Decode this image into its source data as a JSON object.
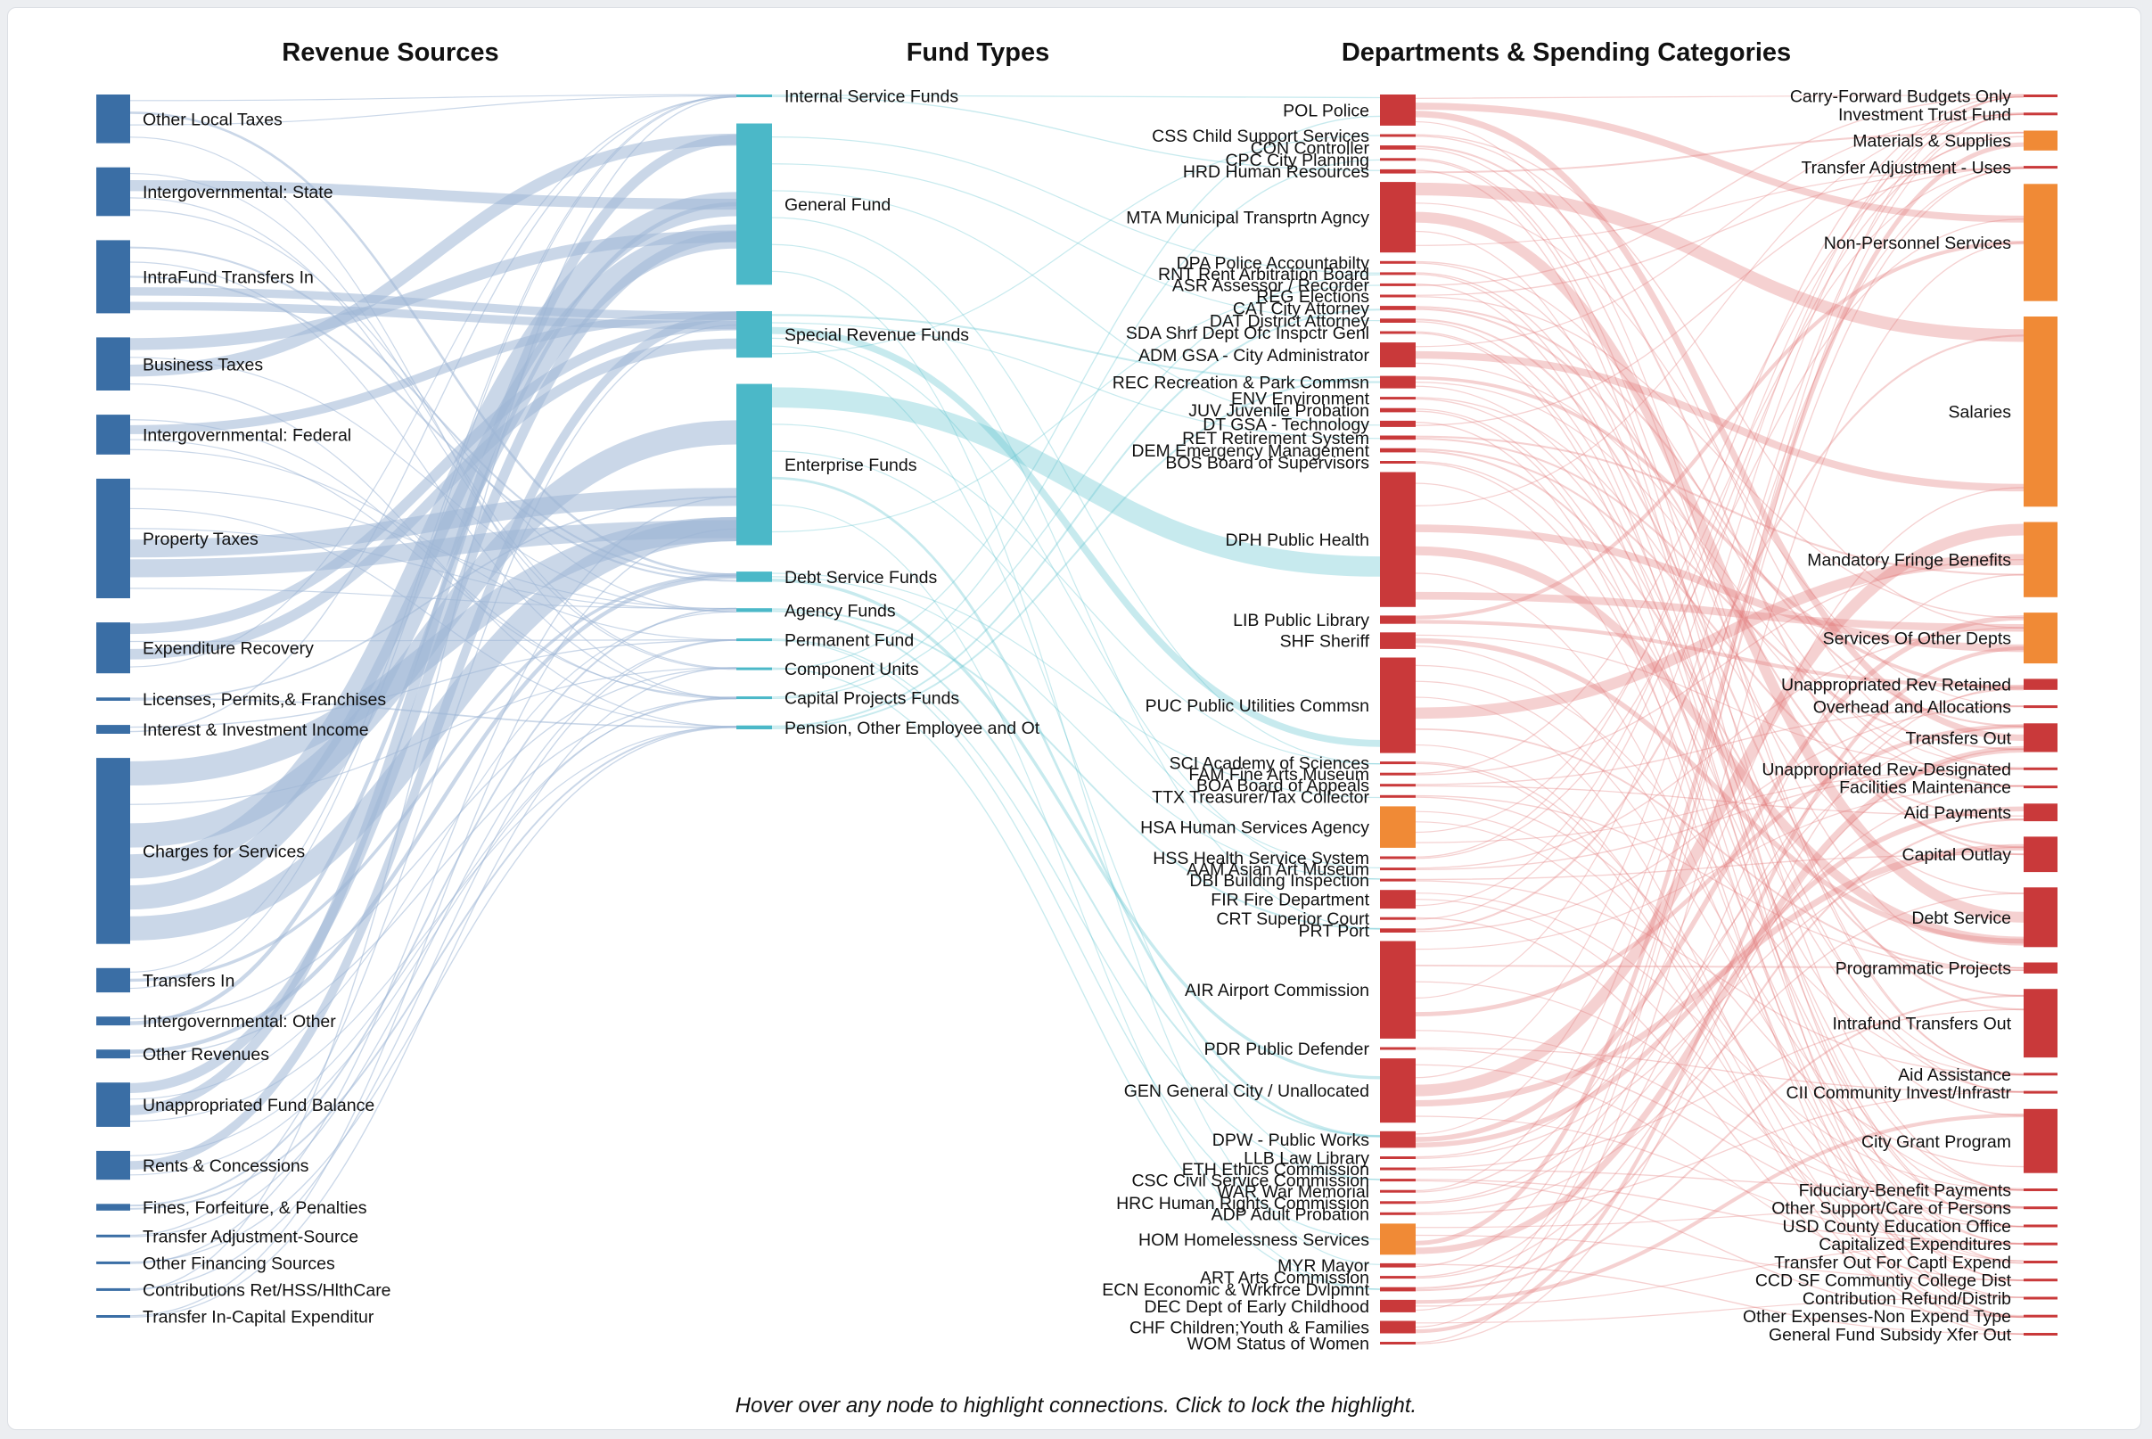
{
  "hint": "Hover over any node to highlight connections. Click to lock the highlight.",
  "colors": {
    "revenue": "#3a6ea5",
    "fund": "#4bb8c8",
    "dept_large": "#c9393a",
    "dept_highlight": "#f08a36",
    "category": "#f08a36",
    "category_alt": "#c9393a",
    "link_revenue": "#9fb6d6",
    "link_fund": "#5fc2cd",
    "link_dept": "#e27c7c"
  },
  "chart_data": {
    "type": "sankey",
    "titles": [
      "Revenue Sources",
      "Fund Types",
      "Departments & Spending Categories"
    ],
    "columns": [
      {
        "name": "Revenue Sources",
        "nodes": [
          {
            "label": "Other Local Taxes",
            "w": 2.2
          },
          {
            "label": "Intergovernmental: State",
            "w": 2.2
          },
          {
            "label": "IntraFund Transfers In",
            "w": 3.3
          },
          {
            "label": "Business Taxes",
            "w": 2.4
          },
          {
            "label": "Intergovernmental: Federal",
            "w": 1.8
          },
          {
            "label": "Property Taxes",
            "w": 5.4
          },
          {
            "label": "Expenditure Recovery",
            "w": 2.3
          },
          {
            "label": "Licenses, Permits,& Franchises",
            "w": 0.15
          },
          {
            "label": "Interest & Investment Income",
            "w": 0.4
          },
          {
            "label": "Charges for Services",
            "w": 8.4
          },
          {
            "label": "Transfers In",
            "w": 1.1
          },
          {
            "label": "Intergovernmental: Other",
            "w": 0.4
          },
          {
            "label": "Other Revenues",
            "w": 0.4
          },
          {
            "label": "Unappropriated Fund Balance",
            "w": 2.0
          },
          {
            "label": "Rents & Concessions",
            "w": 1.3
          },
          {
            "label": "Fines, Forfeiture, & Penalties",
            "w": 0.3
          },
          {
            "label": "Transfer Adjustment-Source",
            "w": 0.05
          },
          {
            "label": "Other Financing Sources",
            "w": 0.05
          },
          {
            "label": "Contributions Ret/HSS/HlthCare",
            "w": 0.05
          },
          {
            "label": "Transfer In-Capital Expenditur",
            "w": 0.05
          }
        ]
      },
      {
        "name": "Fund Types",
        "nodes": [
          {
            "label": "Internal Service Funds",
            "w": 0.1
          },
          {
            "label": "General Fund",
            "w": 12.5
          },
          {
            "label": "Special Revenue Funds",
            "w": 3.6
          },
          {
            "label": "Enterprise Funds",
            "w": 12.5
          },
          {
            "label": "Debt Service Funds",
            "w": 0.8
          },
          {
            "label": "Agency Funds",
            "w": 0.3
          },
          {
            "label": "Permanent Fund",
            "w": 0.1
          },
          {
            "label": "Component Units",
            "w": 0.1
          },
          {
            "label": "Capital Projects Funds",
            "w": 0.2
          },
          {
            "label": "Pension, Other Employee and Ot",
            "w": 0.3
          }
        ]
      },
      {
        "name": "Departments",
        "nodes": [
          {
            "label": "POL Police",
            "w": 1.5
          },
          {
            "label": "CSS Child Support Services",
            "w": 0.1
          },
          {
            "label": "CON Controller",
            "w": 0.2
          },
          {
            "label": "CPC City Planning",
            "w": 0.1
          },
          {
            "label": "HRD Human Resources",
            "w": 0.2
          },
          {
            "label": "MTA Municipal Transprtn Agncy",
            "w": 3.4
          },
          {
            "label": "DPA Police Accountabilty",
            "w": 0.05
          },
          {
            "label": "RNT Rent Arbitration Board",
            "w": 0.05
          },
          {
            "label": "ASR Assessor / Recorder",
            "w": 0.1
          },
          {
            "label": "REG Elections",
            "w": 0.1
          },
          {
            "label": "CAT City Attorney",
            "w": 0.2
          },
          {
            "label": "DAT District Attorney",
            "w": 0.2
          },
          {
            "label": "SDA Shrf Dept Ofc Inspctr Genl",
            "w": 0.05
          },
          {
            "label": "ADM GSA - City Administrator",
            "w": 1.2
          },
          {
            "label": "REC Recreation & Park Commsn",
            "w": 0.6
          },
          {
            "label": "ENV Environment",
            "w": 0.1
          },
          {
            "label": "JUV Juvenile Probation",
            "w": 0.2
          },
          {
            "label": "DT GSA - Technology",
            "w": 0.3
          },
          {
            "label": "RET Retirement System",
            "w": 0.2
          },
          {
            "label": "DEM Emergency Management",
            "w": 0.2
          },
          {
            "label": "BOS Board of Supervisors",
            "w": 0.1
          },
          {
            "label": "DPH Public Health",
            "w": 6.5
          },
          {
            "label": "LIB Public Library",
            "w": 0.4
          },
          {
            "label": "SHF Sheriff",
            "w": 0.8
          },
          {
            "label": "PUC Public Utilities Commsn",
            "w": 4.6
          },
          {
            "label": "SCI Academy of Sciences",
            "w": 0.05
          },
          {
            "label": "FAM Fine Arts Museum",
            "w": 0.05
          },
          {
            "label": "BOA Board of Appeals",
            "w": 0.05
          },
          {
            "label": "TTX Treasurer/Tax Collector",
            "w": 0.1
          },
          {
            "label": "HSA Human Services Agency",
            "w": 2.0
          },
          {
            "label": "HSS Health Service System",
            "w": 0.1
          },
          {
            "label": "AAM Asian Art Museum",
            "w": 0.05
          },
          {
            "label": "DBI Building Inspection",
            "w": 0.1
          },
          {
            "label": "FIR Fire Department",
            "w": 0.9
          },
          {
            "label": "CRT Superior Court",
            "w": 0.05
          },
          {
            "label": "PRT Port",
            "w": 0.2
          },
          {
            "label": "AIR Airport Commission",
            "w": 4.7
          },
          {
            "label": "PDR Public Defender",
            "w": 0.1
          },
          {
            "label": "GEN General City / Unallocated",
            "w": 3.1
          },
          {
            "label": "DPW - Public Works",
            "w": 0.8
          },
          {
            "label": "LLB Law Library",
            "w": 0.05
          },
          {
            "label": "ETH Ethics Commission",
            "w": 0.05
          },
          {
            "label": "CSC Civil Service Commission",
            "w": 0.05
          },
          {
            "label": "WAR War Memorial",
            "w": 0.05
          },
          {
            "label": "HRC Human Rights Commission",
            "w": 0.05
          },
          {
            "label": "ADP Adult Probation",
            "w": 0.1
          },
          {
            "label": "HOM Homelessness Services",
            "w": 1.5
          },
          {
            "label": "MYR Mayor",
            "w": 0.2
          },
          {
            "label": "ART Arts Commission",
            "w": 0.05
          },
          {
            "label": "ECN Economic & Wrkfrce Dvlpmnt",
            "w": 0.2
          },
          {
            "label": "DEC Dept of Early Childhood",
            "w": 0.6
          },
          {
            "label": "CHF Children;Youth & Families",
            "w": 0.6
          },
          {
            "label": "WOM Status of Women",
            "w": 0.05
          }
        ]
      },
      {
        "name": "Spending Categories",
        "nodes": [
          {
            "label": "Carry-Forward Budgets Only",
            "w": 0.05
          },
          {
            "label": "Investment Trust Fund",
            "w": 0.05
          },
          {
            "label": "Materials & Supplies",
            "w": 0.9
          },
          {
            "label": "Transfer Adjustment - Uses",
            "w": 0.05
          },
          {
            "label": "Non-Personnel Services",
            "w": 5.3
          },
          {
            "label": "Salaries",
            "w": 8.6
          },
          {
            "label": "Mandatory Fringe Benefits",
            "w": 3.4
          },
          {
            "label": "Services Of Other Depts",
            "w": 2.3
          },
          {
            "label": "Unappropriated Rev Retained",
            "w": 0.5
          },
          {
            "label": "Overhead and Allocations",
            "w": 0.1
          },
          {
            "label": "Transfers Out",
            "w": 1.3
          },
          {
            "label": "Unappropriated Rev-Designated",
            "w": 0.05
          },
          {
            "label": "Facilities Maintenance",
            "w": 0.05
          },
          {
            "label": "Aid Payments",
            "w": 0.8
          },
          {
            "label": "Capital Outlay",
            "w": 1.6
          },
          {
            "label": "Debt Service",
            "w": 2.7
          },
          {
            "label": "Programmatic Projects",
            "w": 0.5
          },
          {
            "label": "Intrafund Transfers Out",
            "w": 3.1
          },
          {
            "label": "Aid Assistance",
            "w": 0.05
          },
          {
            "label": "CII Community Invest/Infrastr",
            "w": 0.05
          },
          {
            "label": "City Grant Program",
            "w": 2.9
          },
          {
            "label": "Fiduciary-Benefit Payments",
            "w": 0.05
          },
          {
            "label": "Other Support/Care of Persons",
            "w": 0.05
          },
          {
            "label": "USD County Education Office",
            "w": 0.05
          },
          {
            "label": "Capitalized Expenditures",
            "w": 0.05
          },
          {
            "label": "Transfer Out For Captl Expend",
            "w": 0.05
          },
          {
            "label": "CCD SF Communtiy College Dist",
            "w": 0.05
          },
          {
            "label": "Contribution Refund/Distrib",
            "w": 0.05
          },
          {
            "label": "Other Expenses-Non Expend Type",
            "w": 0.05
          },
          {
            "label": "General Fund Subsidy Xfer Out",
            "w": 0.05
          }
        ]
      }
    ],
    "highlighted_departments": [
      "HSA Human Services Agency",
      "HOM Homelessness Services"
    ],
    "highlighted_categories": [
      "Materials & Supplies",
      "Non-Personnel Services",
      "Salaries",
      "Mandatory Fringe Benefits",
      "Services Of Other Depts"
    ]
  }
}
